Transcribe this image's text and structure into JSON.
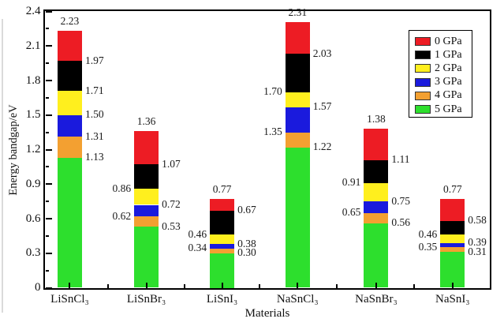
{
  "chart_data": {
    "type": "bar",
    "appearance": "stacked-segments",
    "title": "",
    "xlabel": "Materials",
    "ylabel": "Energy bandgap/eV",
    "ylim": [
      0,
      2.4
    ],
    "yticks": [
      0,
      0.3,
      0.6,
      0.9,
      1.2,
      1.5,
      1.8,
      2.1,
      2.4
    ],
    "ytick_labels": [
      "0",
      "0.3",
      "0.6",
      "0.9",
      "1.2",
      "1.5",
      "1.8",
      "2.1",
      "2.4"
    ],
    "minor_ytick_step": 0.15,
    "grid": false,
    "legend_position": "top-right",
    "categories": [
      "LiSnCl₃",
      "LiSnBr₃",
      "LiSnI₃",
      "NaSnCl₃",
      "NaSnBr₃",
      "NaSnI₃"
    ],
    "series": [
      {
        "name": "0 GPa",
        "color": "#ed1c24",
        "values": [
          2.23,
          1.36,
          0.77,
          2.31,
          1.38,
          0.77
        ]
      },
      {
        "name": "1 GPa",
        "color": "#000000",
        "values": [
          1.97,
          1.07,
          0.67,
          2.03,
          1.11,
          0.58
        ]
      },
      {
        "name": "2 GPa",
        "color": "#ffef1e",
        "values": [
          1.71,
          0.86,
          0.46,
          1.7,
          0.91,
          0.46
        ]
      },
      {
        "name": "3 GPa",
        "color": "#1a1add",
        "values": [
          1.5,
          0.72,
          0.38,
          1.57,
          0.75,
          0.39
        ]
      },
      {
        "name": "4 GPa",
        "color": "#f3a031",
        "values": [
          1.31,
          0.62,
          0.34,
          1.35,
          0.65,
          0.35
        ]
      },
      {
        "name": "5 GPa",
        "color": "#2ddf2d",
        "values": [
          1.13,
          0.53,
          0.3,
          1.22,
          0.56,
          0.31
        ]
      }
    ],
    "value_label_sides": [
      [
        "top",
        "right",
        "right",
        "right",
        "right",
        "right"
      ],
      [
        "top",
        "right",
        "left",
        "right",
        "left",
        "right"
      ],
      [
        "top",
        "right",
        "left",
        "right",
        "left",
        "right"
      ],
      [
        "top",
        "right",
        "left",
        "right",
        "left",
        "right"
      ],
      [
        "top",
        "right",
        "left",
        "right",
        "left",
        "right"
      ],
      [
        "top",
        "right",
        "left",
        "right",
        "left",
        "right"
      ]
    ],
    "value_label_decimals": 2
  }
}
